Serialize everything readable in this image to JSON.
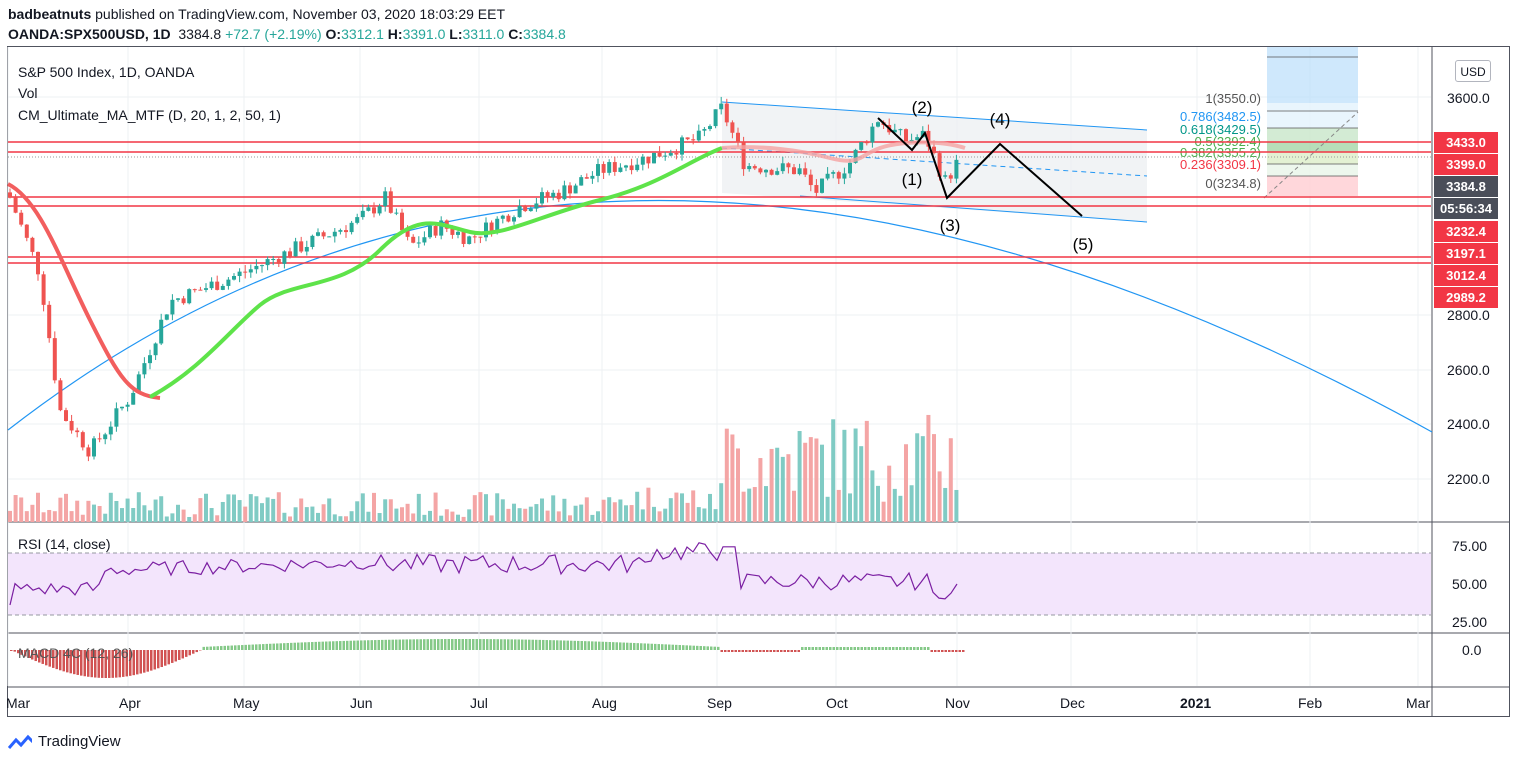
{
  "header": {
    "user": "badbeatnuts",
    "published_text": "published on TradingView.com, November 03, 2020 18:03:29 EET",
    "symbol": "OANDA:SPX500USD, 1D",
    "last": "3384.8",
    "change": "+72.7 (+2.19%)",
    "o_label": "O:",
    "o": "3312.1",
    "h_label": "H:",
    "h": "3391.0",
    "l_label": "L:",
    "l": "3311.0",
    "c_label": "C:",
    "c": "3384.8"
  },
  "legend": {
    "main": "S&P 500 Index, 1D, OANDA",
    "vol": "Vol",
    "ma": "CM_Ultimate_MA_MTF (D, 20, 1, 2, 50, 1)",
    "rsi": "RSI (14, close)",
    "macd": "MACD 4C (12, 26)"
  },
  "currency_button": "USD",
  "price_axis": [
    "3600.0",
    "2800.0",
    "2600.0",
    "2400.0",
    "2200.0"
  ],
  "price_labels": [
    {
      "text": "3433.0",
      "style": "red"
    },
    {
      "text": "3399.0",
      "style": "red"
    },
    {
      "text": "3384.8",
      "style": "dark"
    },
    {
      "text": "05:56:34",
      "style": "dark"
    },
    {
      "text": "3232.4",
      "style": "red"
    },
    {
      "text": "3197.1",
      "style": "red"
    },
    {
      "text": "3012.4",
      "style": "red"
    },
    {
      "text": "2989.2",
      "style": "red"
    }
  ],
  "rsi_axis": [
    "75.00",
    "50.00",
    "25.00"
  ],
  "macd_axis": [
    "0.0"
  ],
  "time_axis": [
    "Mar",
    "Apr",
    "May",
    "Jun",
    "Jul",
    "Aug",
    "Sep",
    "Oct",
    "Nov",
    "Dec",
    "2021",
    "Feb",
    "Mar"
  ],
  "fib_levels": [
    "1(3550.0)",
    "0.786(3482.5)",
    "0.618(3429.5)",
    "0.5(3392.4)",
    "0.382(3355.2)",
    "0.236(3309.1)",
    "0(3234.8)"
  ],
  "wave_labels": [
    "(1)",
    "(2)",
    "(3)",
    "(4)",
    "(5)"
  ],
  "branding": "TradingView",
  "colors": {
    "up": "#26a69a",
    "down": "#ef5350",
    "level_line": "#f23645",
    "ma_fast_up": "#5ee34a",
    "ma_slow": "#f25e5e",
    "arc": "#2196f3",
    "rsi_line": "#7b1fa2",
    "rsi_band": "#f3e5fc"
  }
}
